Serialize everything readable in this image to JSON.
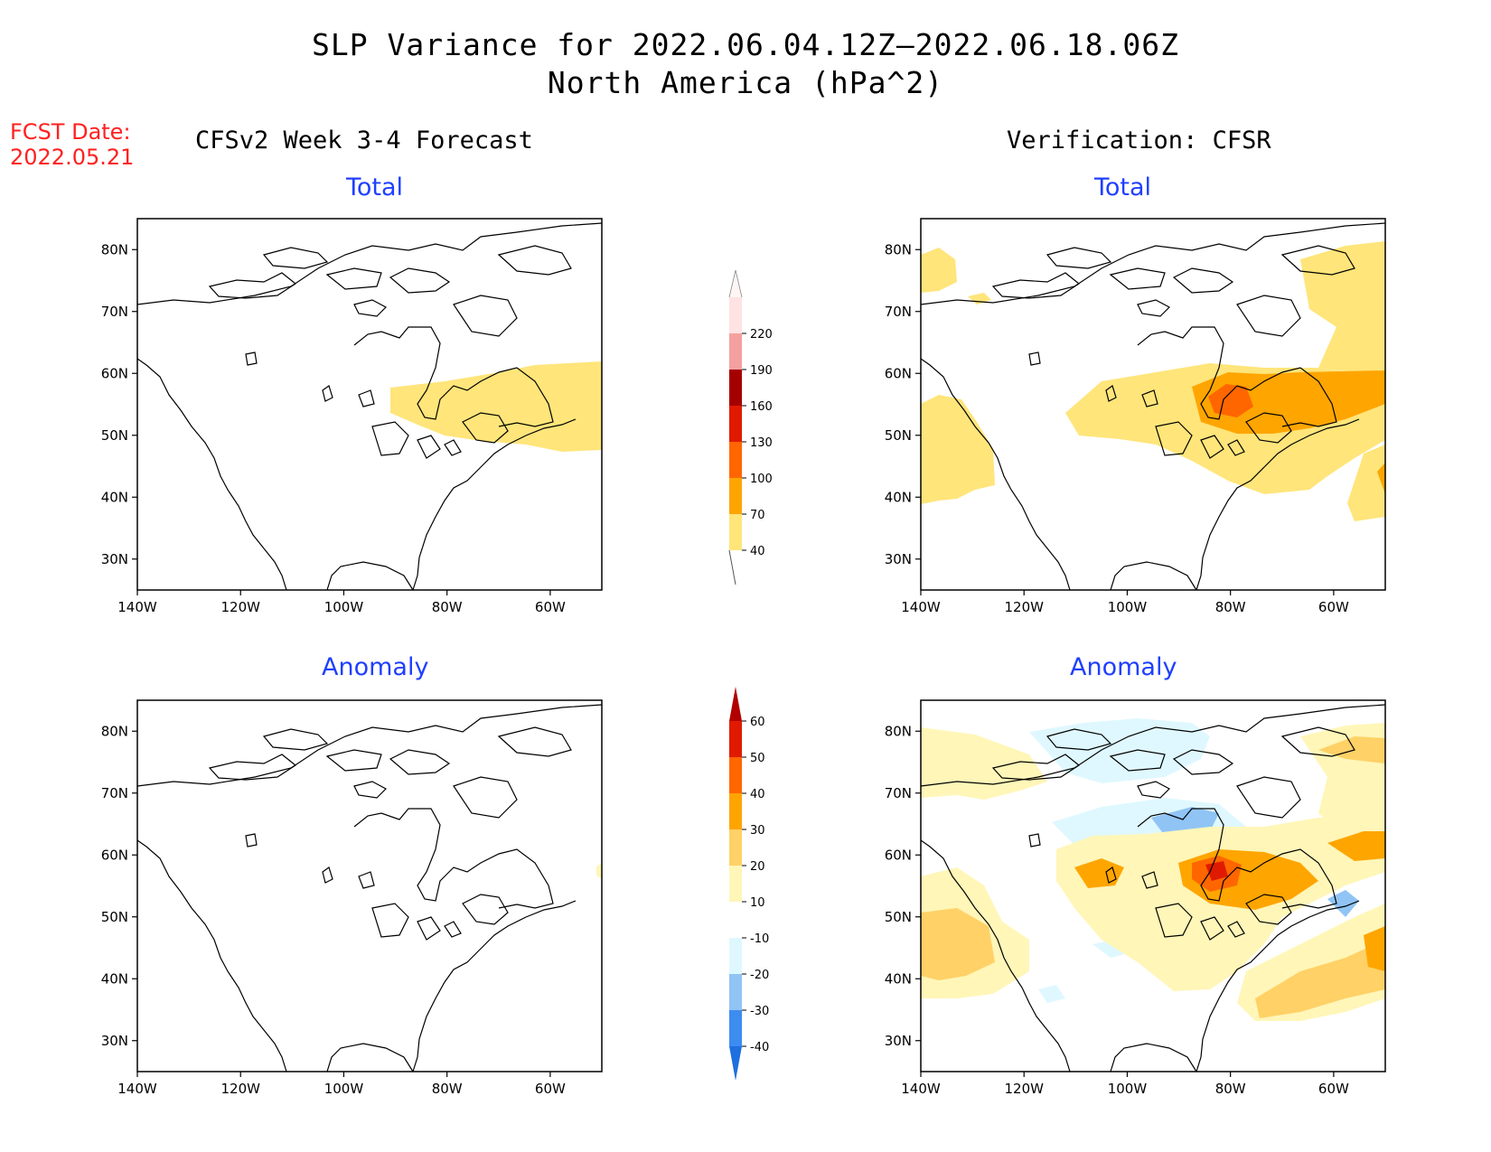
{
  "header": {
    "title_line1": "SLP Variance for 2022.06.04.12Z—2022.06.18.06Z",
    "title_line2": "North America (hPa^2)",
    "fcst_label": "FCST Date:",
    "fcst_date": "2022.05.21",
    "left_column_title": "CFSv2 Week 3-4 Forecast",
    "right_column_title": "Verification: CFSR"
  },
  "panels": {
    "fcst_total": {
      "subtitle": "Total"
    },
    "fcst_anom": {
      "subtitle": "Anomaly"
    },
    "verif_total": {
      "subtitle": "Total"
    },
    "verif_anom": {
      "subtitle": "Anomaly"
    }
  },
  "map_extent": {
    "lon_min": -140,
    "lon_max": -50,
    "lat_min": 25,
    "lat_max": 85
  },
  "axes": {
    "lat_ticks": [
      "80N",
      "70N",
      "60N",
      "50N",
      "40N",
      "30N"
    ],
    "lat_values": [
      80,
      70,
      60,
      50,
      40,
      30
    ],
    "lon_ticks": [
      "140W",
      "120W",
      "100W",
      "80W",
      "60W"
    ],
    "lon_values": [
      -140,
      -120,
      -100,
      -80,
      -60
    ]
  },
  "colorbars": {
    "total": {
      "labels": [
        "40",
        "70",
        "100",
        "130",
        "160",
        "190",
        "220"
      ],
      "colors": [
        "#ffe57a",
        "#ffa500",
        "#ff6600",
        "#e01a00",
        "#a50000",
        "#f5a0a0",
        "#ffe2e2"
      ]
    },
    "anomaly": {
      "labels": [
        "-40",
        "-30",
        "-20",
        "-10",
        "10",
        "20",
        "30",
        "40",
        "50",
        "60"
      ],
      "colors": [
        "#1e6fe0",
        "#3d8cf0",
        "#90c4f5",
        "#dff8ff",
        "#ffffff",
        "#fff6b8",
        "#ffd166",
        "#ffa500",
        "#ff6600",
        "#e01a00",
        "#b00000"
      ]
    }
  }
}
